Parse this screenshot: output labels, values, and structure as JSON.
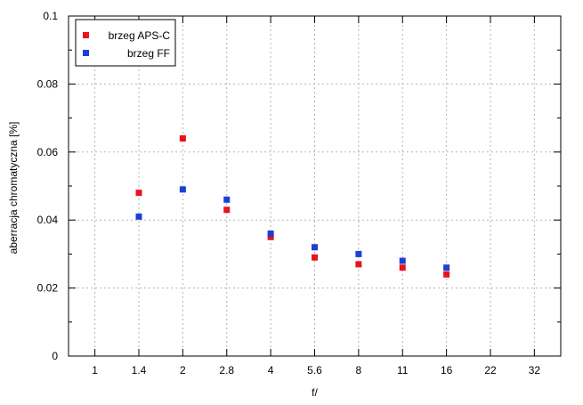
{
  "chart_data": {
    "type": "scatter",
    "xlabel": "f/",
    "ylabel": "aberracja chromatyczna [%]",
    "categories": [
      "1",
      "1.4",
      "2",
      "2.8",
      "4",
      "5.6",
      "8",
      "11",
      "16",
      "22",
      "32"
    ],
    "ylim": [
      0,
      0.1
    ],
    "yticks": [
      0,
      0.02,
      0.04,
      0.06,
      0.08,
      0.1
    ],
    "ytick_labels": [
      "0",
      "0.02",
      "0.04",
      "0.06",
      "0.08",
      "0.1"
    ],
    "grid": true,
    "legend_position": "top-left",
    "series": [
      {
        "name": "brzeg APS-C",
        "color": "#e8141c",
        "x": [
          "1.4",
          "2",
          "2.8",
          "4",
          "5.6",
          "8",
          "11",
          "16"
        ],
        "values": [
          0.048,
          0.064,
          0.043,
          0.035,
          0.029,
          0.027,
          0.026,
          0.024
        ]
      },
      {
        "name": "brzeg FF",
        "color": "#1c3fd6",
        "x": [
          "1.4",
          "2",
          "2.8",
          "4",
          "5.6",
          "8",
          "11",
          "16"
        ],
        "values": [
          0.041,
          0.049,
          0.046,
          0.036,
          0.032,
          0.03,
          0.028,
          0.026
        ]
      }
    ]
  }
}
